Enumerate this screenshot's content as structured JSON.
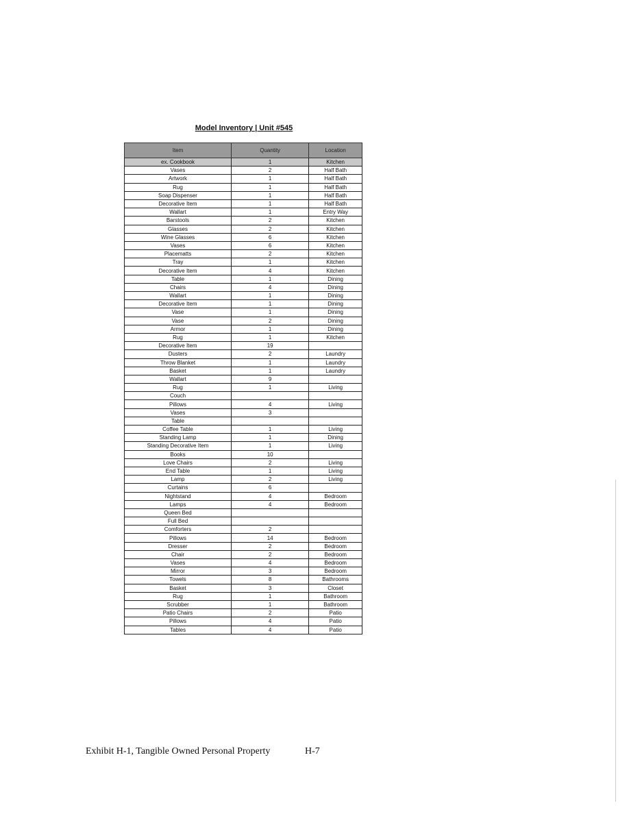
{
  "title": "Model Inventory | Unit #545",
  "table": {
    "headers": [
      "Item",
      "Quantity",
      "Location"
    ],
    "rows": [
      [
        "ex. Cookbook",
        "1",
        "Kitchen"
      ],
      [
        "Vases",
        "2",
        "Half Bath"
      ],
      [
        "Artwork",
        "1",
        "Half Bath"
      ],
      [
        "Rug",
        "1",
        "Half Bath"
      ],
      [
        "Soap Dispenser",
        "1",
        "Half Bath"
      ],
      [
        "Decorative Item",
        "1",
        "Half Bath"
      ],
      [
        "Wallart",
        "1",
        "Entry Way"
      ],
      [
        "Barstools",
        "2",
        "Kitchen"
      ],
      [
        "Glasses",
        "2",
        "Kitchen"
      ],
      [
        "Wine Glasses",
        "6",
        "Kitchen"
      ],
      [
        "Vases",
        "6",
        "Kitchen"
      ],
      [
        "Placematts",
        "2",
        "Kitchen"
      ],
      [
        "Tray",
        "1",
        "Kitchen"
      ],
      [
        "Decorative Item",
        "4",
        "Kitchen"
      ],
      [
        "Table",
        "1",
        "Dining"
      ],
      [
        "Chairs",
        "4",
        "Dining"
      ],
      [
        "Wallart",
        "1",
        "Dining"
      ],
      [
        "Decorative Item",
        "1",
        "Dining"
      ],
      [
        "Vase",
        "1",
        "Dining"
      ],
      [
        "Vase",
        "2",
        "Dining"
      ],
      [
        "Armor",
        "1",
        "Dining"
      ],
      [
        "Rug",
        "1",
        "Kitchen"
      ],
      [
        "Decorative Item",
        "19",
        ""
      ],
      [
        "Dusters",
        "2",
        "Laundry"
      ],
      [
        "Throw Blanket",
        "1",
        "Laundry"
      ],
      [
        "Basket",
        "1",
        "Laundry"
      ],
      [
        "Wallart",
        "9",
        ""
      ],
      [
        "Rug",
        "1",
        "Living"
      ],
      [
        "Couch",
        "",
        ""
      ],
      [
        "Pillows",
        "4",
        "Living"
      ],
      [
        "Vases",
        "3",
        ""
      ],
      [
        "Table",
        "",
        ""
      ],
      [
        "Coffee Table",
        "1",
        "Living"
      ],
      [
        "Standing Lamp",
        "1",
        "Dining"
      ],
      [
        "Standing Decorative Item",
        "1",
        "Living"
      ],
      [
        "Books",
        "10",
        ""
      ],
      [
        "Love Chairs",
        "2",
        "Living"
      ],
      [
        "End Table",
        "1",
        "Living"
      ],
      [
        "Lamp",
        "2",
        "Living"
      ],
      [
        "Curtains",
        "6",
        ""
      ],
      [
        "Nightstand",
        "4",
        "Bedroom"
      ],
      [
        "Lamps",
        "4",
        "Bedroom"
      ],
      [
        "Queen Bed",
        "",
        ""
      ],
      [
        "Full Bed",
        "",
        ""
      ],
      [
        "Comforters",
        "2",
        ""
      ],
      [
        "Pillows",
        "14",
        "Bedroom"
      ],
      [
        "Dresser",
        "2",
        "Bedroom"
      ],
      [
        "Chair",
        "2",
        "Bedroom"
      ],
      [
        "Vases",
        "4",
        "Bedroom"
      ],
      [
        "Mirror",
        "3",
        "Bedroom"
      ],
      [
        "Towels",
        "8",
        "Bathrooms"
      ],
      [
        "Basket",
        "3",
        "Closet"
      ],
      [
        "Rug",
        "1",
        "Bathroom"
      ],
      [
        "Scrubber",
        "1",
        "Bathroom"
      ],
      [
        "Patio Chairs",
        "2",
        "Patio"
      ],
      [
        "Pillows",
        "4",
        "Patio"
      ],
      [
        "Tables",
        "4",
        "Patio"
      ]
    ]
  },
  "footer": {
    "exhibit": "Exhibit H-1, Tangible Owned Personal Property",
    "page": "H-7"
  }
}
